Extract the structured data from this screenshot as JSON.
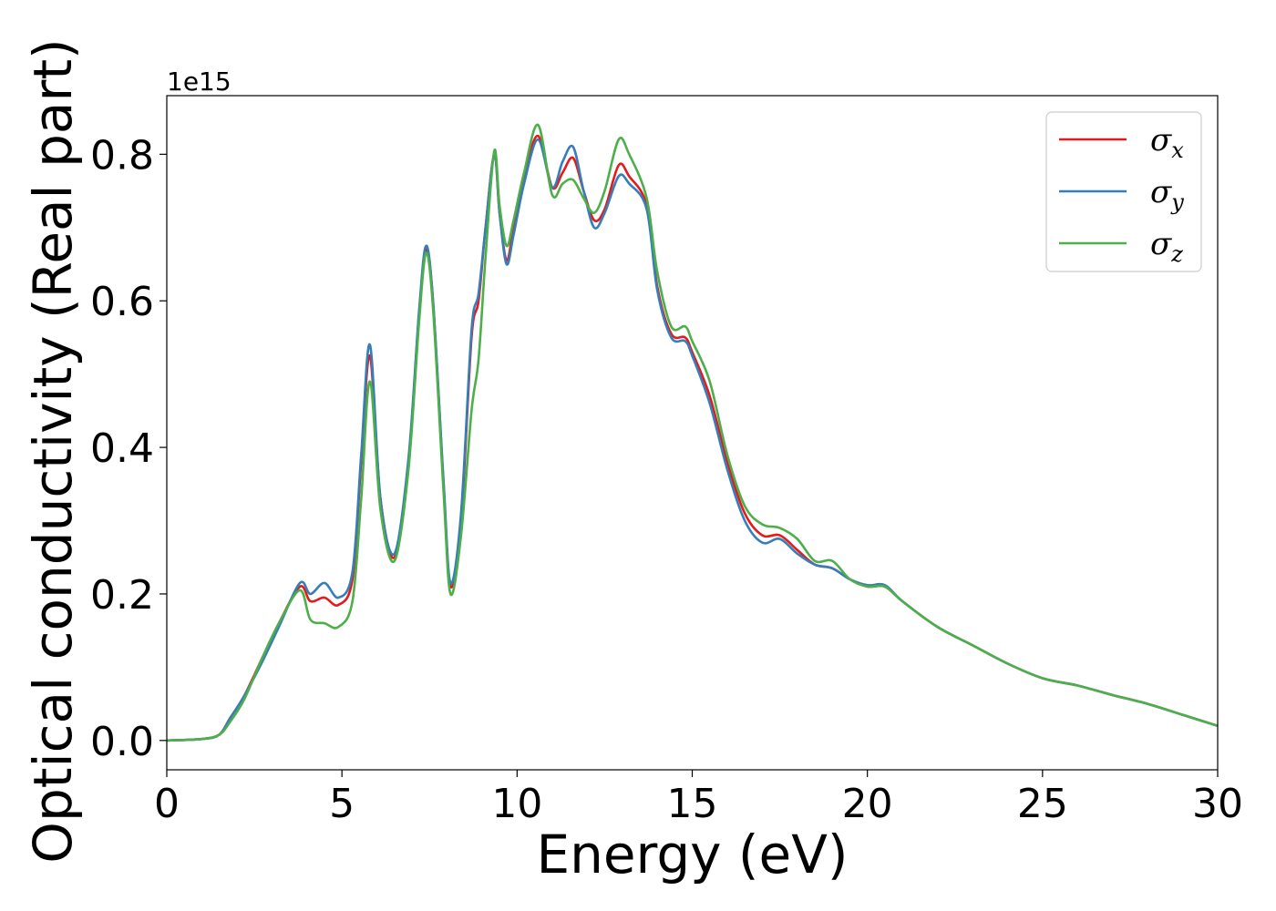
{
  "chart_data": {
    "type": "line",
    "xlabel": "Energy (eV)",
    "ylabel": "Optical conductivity (Real part)",
    "y_offset_label": "1e15",
    "xlim": [
      0,
      30
    ],
    "ylim": [
      -0.04,
      0.88
    ],
    "x_ticks": [
      0,
      5,
      10,
      15,
      20,
      25,
      30
    ],
    "x_tick_labels": [
      "0",
      "5",
      "10",
      "15",
      "20",
      "25",
      "30"
    ],
    "y_ticks": [
      0.0,
      0.2,
      0.4,
      0.6,
      0.8
    ],
    "y_tick_labels": [
      "0.0",
      "0.2",
      "0.4",
      "0.6",
      "0.8"
    ],
    "grid": false,
    "legend_position": "top-right",
    "series": [
      {
        "name": "σx",
        "legend_base": "σ",
        "legend_sub": "x",
        "color": "#e41a1c",
        "x": [
          0,
          1,
          1.5,
          1.8,
          2.2,
          2.7,
          3.2,
          3.8,
          4.1,
          4.5,
          4.9,
          5.3,
          5.55,
          5.8,
          6.1,
          6.5,
          6.9,
          7.2,
          7.4,
          7.6,
          7.9,
          8.1,
          8.4,
          8.7,
          8.9,
          9.1,
          9.35,
          9.5,
          9.7,
          9.9,
          10.2,
          10.6,
          11.0,
          11.3,
          11.6,
          11.9,
          12.2,
          12.5,
          12.9,
          13.2,
          13.7,
          14.0,
          14.4,
          14.8,
          15.0,
          15.5,
          16.0,
          16.5,
          17.0,
          17.5,
          18.0,
          18.5,
          19.0,
          19.5,
          20.0,
          20.5,
          21.0,
          22.0,
          23.0,
          24.0,
          25.0,
          26.0,
          27.0,
          28.0,
          29.0,
          30.0
        ],
        "y": [
          0.0,
          0.002,
          0.008,
          0.03,
          0.06,
          0.11,
          0.16,
          0.21,
          0.19,
          0.195,
          0.185,
          0.22,
          0.38,
          0.525,
          0.33,
          0.25,
          0.38,
          0.58,
          0.67,
          0.6,
          0.35,
          0.21,
          0.3,
          0.55,
          0.6,
          0.7,
          0.8,
          0.72,
          0.655,
          0.7,
          0.77,
          0.825,
          0.755,
          0.775,
          0.795,
          0.75,
          0.71,
          0.725,
          0.785,
          0.77,
          0.73,
          0.62,
          0.555,
          0.55,
          0.53,
          0.47,
          0.38,
          0.31,
          0.28,
          0.28,
          0.26,
          0.24,
          0.235,
          0.22,
          0.21,
          0.21,
          0.19,
          0.155,
          0.13,
          0.105,
          0.085,
          0.075,
          0.062,
          0.05,
          0.035,
          0.02
        ]
      },
      {
        "name": "σy",
        "legend_base": "σ",
        "legend_sub": "y",
        "color": "#377eb8",
        "x": [
          0,
          1,
          1.5,
          1.8,
          2.2,
          2.7,
          3.2,
          3.8,
          4.1,
          4.5,
          4.9,
          5.3,
          5.55,
          5.8,
          6.1,
          6.5,
          6.9,
          7.2,
          7.4,
          7.6,
          7.9,
          8.1,
          8.4,
          8.7,
          8.9,
          9.1,
          9.35,
          9.5,
          9.7,
          9.9,
          10.2,
          10.6,
          11.0,
          11.3,
          11.6,
          11.9,
          12.2,
          12.5,
          12.9,
          13.2,
          13.7,
          14.0,
          14.4,
          14.8,
          15.0,
          15.5,
          16.0,
          16.5,
          17.0,
          17.5,
          18.0,
          18.5,
          19.0,
          19.5,
          20.0,
          20.5,
          21.0,
          22.0,
          23.0,
          24.0,
          25.0,
          26.0,
          27.0,
          28.0,
          29.0,
          30.0
        ],
        "y": [
          0.0,
          0.002,
          0.008,
          0.03,
          0.06,
          0.105,
          0.155,
          0.215,
          0.2,
          0.215,
          0.195,
          0.23,
          0.39,
          0.54,
          0.33,
          0.255,
          0.385,
          0.585,
          0.675,
          0.6,
          0.355,
          0.215,
          0.31,
          0.56,
          0.61,
          0.7,
          0.8,
          0.72,
          0.65,
          0.69,
          0.76,
          0.82,
          0.755,
          0.79,
          0.81,
          0.75,
          0.7,
          0.72,
          0.77,
          0.76,
          0.725,
          0.615,
          0.55,
          0.545,
          0.525,
          0.46,
          0.37,
          0.3,
          0.27,
          0.275,
          0.255,
          0.24,
          0.235,
          0.22,
          0.212,
          0.212,
          0.19,
          0.155,
          0.13,
          0.105,
          0.085,
          0.075,
          0.062,
          0.05,
          0.035,
          0.02
        ]
      },
      {
        "name": "σz",
        "legend_base": "σ",
        "legend_sub": "z",
        "color": "#4daf4a",
        "x": [
          0,
          1,
          1.5,
          1.8,
          2.2,
          2.7,
          3.2,
          3.8,
          4.1,
          4.5,
          4.9,
          5.3,
          5.55,
          5.8,
          6.1,
          6.5,
          6.9,
          7.2,
          7.4,
          7.6,
          7.9,
          8.1,
          8.4,
          8.7,
          8.9,
          9.1,
          9.35,
          9.5,
          9.7,
          9.9,
          10.2,
          10.6,
          11.0,
          11.3,
          11.6,
          11.9,
          12.2,
          12.5,
          12.9,
          13.2,
          13.7,
          14.0,
          14.4,
          14.8,
          15.0,
          15.5,
          16.0,
          16.5,
          17.0,
          17.5,
          18.0,
          18.5,
          19.0,
          19.5,
          20.0,
          20.5,
          21.0,
          22.0,
          23.0,
          24.0,
          25.0,
          26.0,
          27.0,
          28.0,
          29.0,
          30.0
        ],
        "y": [
          0.0,
          0.002,
          0.008,
          0.025,
          0.055,
          0.11,
          0.16,
          0.205,
          0.165,
          0.16,
          0.155,
          0.19,
          0.33,
          0.49,
          0.315,
          0.245,
          0.37,
          0.57,
          0.665,
          0.59,
          0.34,
          0.2,
          0.28,
          0.45,
          0.52,
          0.66,
          0.805,
          0.73,
          0.675,
          0.71,
          0.775,
          0.84,
          0.745,
          0.76,
          0.765,
          0.74,
          0.72,
          0.75,
          0.82,
          0.8,
          0.74,
          0.64,
          0.565,
          0.565,
          0.545,
          0.49,
          0.39,
          0.32,
          0.295,
          0.29,
          0.275,
          0.245,
          0.245,
          0.22,
          0.21,
          0.21,
          0.19,
          0.155,
          0.13,
          0.105,
          0.085,
          0.075,
          0.062,
          0.05,
          0.035,
          0.02
        ]
      }
    ]
  }
}
